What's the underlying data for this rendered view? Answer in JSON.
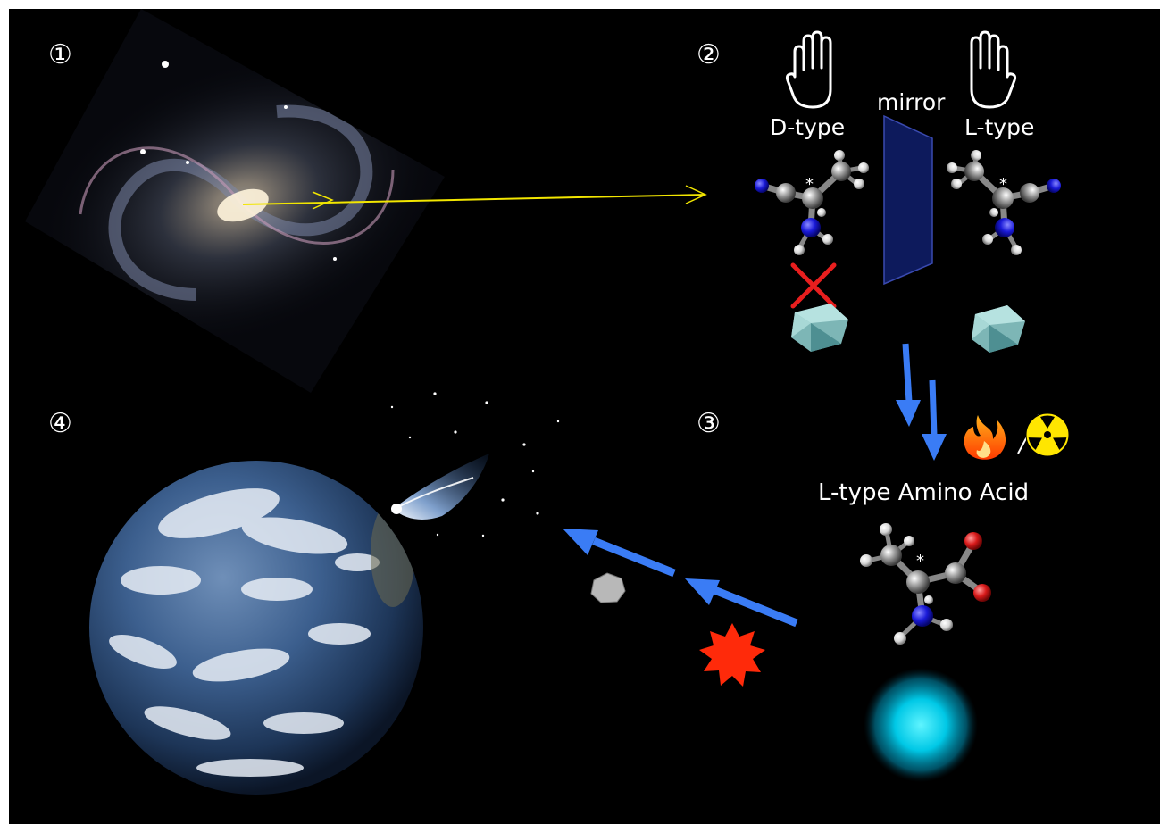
{
  "steps": [
    "①",
    "②",
    "③",
    "④"
  ],
  "panel2": {
    "left_label": "D-type",
    "right_label": "L-type",
    "mirror_label": "mirror",
    "chiral_mark": "*"
  },
  "panel3": {
    "title": "L-type Amino Acid",
    "chiral_mark": "*"
  },
  "colors": {
    "background": "#000000",
    "yellow_line": "#f2e600",
    "blue_arrow": "#3a7cf5",
    "mirror_fill": "#0d1a5c",
    "cross": "#e81e1e",
    "burst": "#ff2a0a",
    "cyan_orb": "#00d7f0",
    "fire": "#ff6a1a",
    "radiation": "#ffe600"
  },
  "icons": [
    "galaxy-icon",
    "hand-icon",
    "mirror-icon",
    "molecule-icon",
    "cross-icon",
    "crystal-icon",
    "fire-icon",
    "radiation-icon",
    "comet-icon",
    "asteroid-icon",
    "burst-icon",
    "earth-icon",
    "orb-icon"
  ]
}
